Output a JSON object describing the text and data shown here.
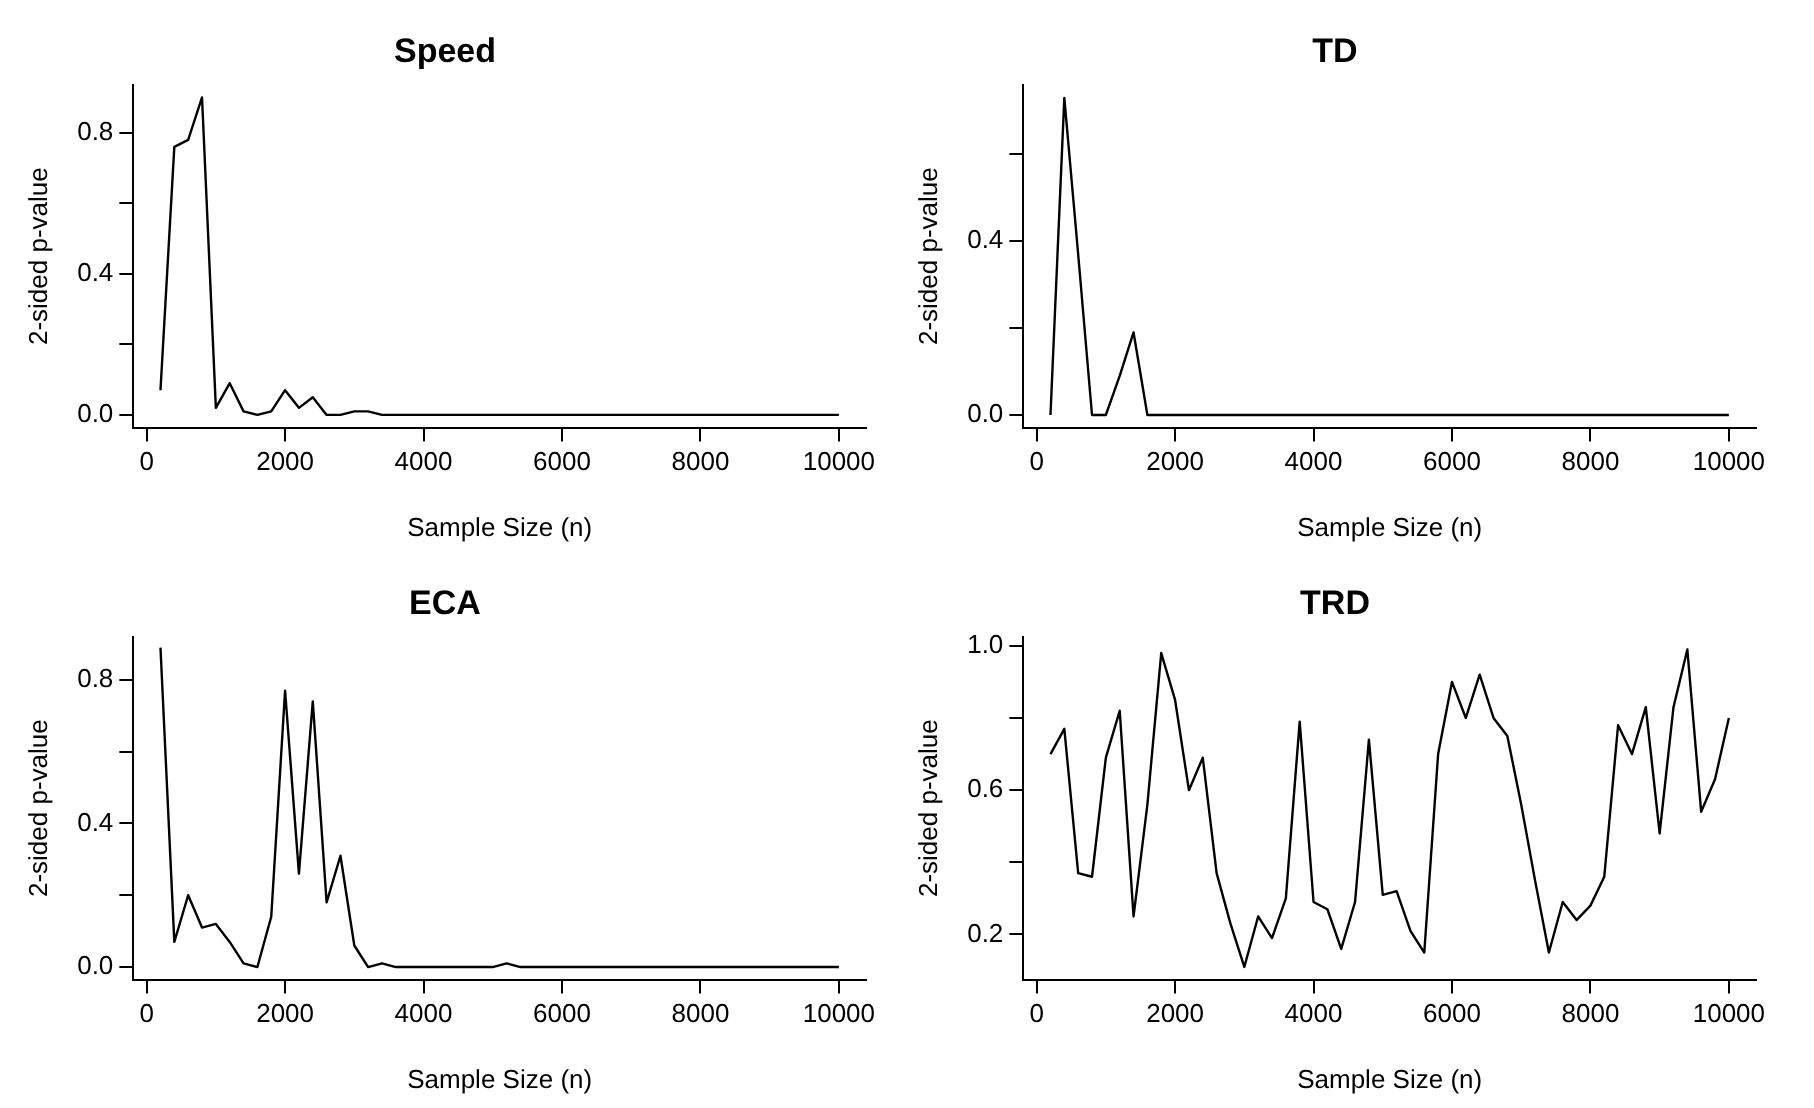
{
  "chart_data": [
    {
      "type": "line",
      "title": "Speed",
      "xlabel": "Sample Size (n)",
      "ylabel": "2-sided p-value",
      "color": "#000000",
      "grid": false,
      "marker": "none",
      "line_style": "solid",
      "x": [
        200,
        400,
        600,
        800,
        1000,
        1200,
        1400,
        1600,
        1800,
        2000,
        2200,
        2400,
        2600,
        2800,
        3000,
        3200,
        3400,
        3600,
        3800,
        4000,
        4200,
        4400,
        4600,
        4800,
        5000,
        5200,
        5400,
        5600,
        5800,
        6000,
        6200,
        6400,
        6600,
        6800,
        7000,
        7200,
        7400,
        7600,
        7800,
        8000,
        8200,
        8400,
        8600,
        8800,
        9000,
        9200,
        9400,
        9600,
        9800,
        10000
      ],
      "values": [
        0.07,
        0.76,
        0.78,
        0.9,
        0.02,
        0.09,
        0.01,
        0,
        0.01,
        0.07,
        0.02,
        0.05,
        0,
        0,
        0.01,
        0.01,
        0,
        0,
        0,
        0,
        0,
        0,
        0,
        0,
        0,
        0,
        0,
        0,
        0,
        0,
        0,
        0,
        0,
        0,
        0,
        0,
        0,
        0,
        0,
        0,
        0,
        0,
        0,
        0,
        0,
        0,
        0,
        0,
        0,
        0
      ],
      "xlim": [
        -192,
        10392
      ],
      "ylim": [
        -0.036,
        0.936
      ],
      "xticks": [
        0,
        2000,
        4000,
        6000,
        8000,
        10000
      ],
      "yticks": [
        {
          "value": 0,
          "label": "0.0"
        },
        {
          "value": 0.2,
          "label": null
        },
        {
          "value": 0.4,
          "label": "0.4"
        },
        {
          "value": 0.6,
          "label": null
        },
        {
          "value": 0.8,
          "label": "0.8"
        }
      ]
    },
    {
      "type": "line",
      "title": "TD",
      "xlabel": "Sample Size (n)",
      "ylabel": "2-sided p-value",
      "color": "#000000",
      "grid": false,
      "marker": "none",
      "line_style": "solid",
      "x": [
        200,
        400,
        600,
        800,
        1000,
        1200,
        1400,
        1600,
        1800,
        2000,
        2200,
        2400,
        2600,
        2800,
        3000,
        3200,
        3400,
        3600,
        3800,
        4000,
        4200,
        4400,
        4600,
        4800,
        5000,
        5200,
        5400,
        5600,
        5800,
        6000,
        6200,
        6400,
        6600,
        6800,
        7000,
        7200,
        7400,
        7600,
        7800,
        8000,
        8200,
        8400,
        8600,
        8800,
        9000,
        9200,
        9400,
        9600,
        9800,
        10000
      ],
      "values": [
        0,
        0.73,
        0.37,
        0,
        0,
        0.09,
        0.19,
        0,
        0,
        0,
        0,
        0,
        0,
        0,
        0,
        0,
        0,
        0,
        0,
        0,
        0,
        0,
        0,
        0,
        0,
        0,
        0,
        0,
        0,
        0,
        0,
        0,
        0,
        0,
        0,
        0,
        0,
        0,
        0,
        0,
        0,
        0,
        0,
        0,
        0,
        0,
        0,
        0,
        0,
        0
      ],
      "xlim": [
        -192,
        10392
      ],
      "ylim": [
        -0.029,
        0.76
      ],
      "xticks": [
        0,
        2000,
        4000,
        6000,
        8000,
        10000
      ],
      "yticks": [
        {
          "value": 0,
          "label": "0.0"
        },
        {
          "value": 0.2,
          "label": null
        },
        {
          "value": 0.4,
          "label": "0.4"
        },
        {
          "value": 0.6,
          "label": null
        }
      ]
    },
    {
      "type": "line",
      "title": "ECA",
      "xlabel": "Sample Size (n)",
      "ylabel": "2-sided p-value",
      "color": "#000000",
      "grid": false,
      "marker": "none",
      "line_style": "solid",
      "x": [
        200,
        400,
        600,
        800,
        1000,
        1200,
        1400,
        1600,
        1800,
        2000,
        2200,
        2400,
        2600,
        2800,
        3000,
        3200,
        3400,
        3600,
        3800,
        4000,
        4200,
        4400,
        4600,
        4800,
        5000,
        5200,
        5400,
        5600,
        5800,
        6000,
        6200,
        6400,
        6600,
        6800,
        7000,
        7200,
        7400,
        7600,
        7800,
        8000,
        8200,
        8400,
        8600,
        8800,
        9000,
        9200,
        9400,
        9600,
        9800,
        10000
      ],
      "values": [
        0.89,
        0.07,
        0.2,
        0.11,
        0.12,
        0.07,
        0.01,
        0,
        0.14,
        0.77,
        0.26,
        0.74,
        0.18,
        0.31,
        0.06,
        0,
        0.01,
        0,
        0,
        0,
        0,
        0,
        0,
        0,
        0,
        0.01,
        0,
        0,
        0,
        0,
        0,
        0,
        0,
        0,
        0,
        0,
        0,
        0,
        0,
        0,
        0,
        0,
        0,
        0,
        0,
        0,
        0,
        0,
        0,
        0
      ],
      "xlim": [
        -192,
        10392
      ],
      "ylim": [
        -0.035,
        0.92
      ],
      "xticks": [
        0,
        2000,
        4000,
        6000,
        8000,
        10000
      ],
      "yticks": [
        {
          "value": 0,
          "label": "0.0"
        },
        {
          "value": 0.2,
          "label": null
        },
        {
          "value": 0.4,
          "label": "0.4"
        },
        {
          "value": 0.6,
          "label": null
        },
        {
          "value": 0.8,
          "label": "0.8"
        }
      ]
    },
    {
      "type": "line",
      "title": "TRD",
      "xlabel": "Sample Size (n)",
      "ylabel": "2-sided p-value",
      "color": "#000000",
      "grid": false,
      "marker": "none",
      "line_style": "solid",
      "x": [
        200,
        400,
        600,
        800,
        1000,
        1200,
        1400,
        1600,
        1800,
        2000,
        2200,
        2400,
        2600,
        2800,
        3000,
        3200,
        3400,
        3600,
        3800,
        4000,
        4200,
        4400,
        4600,
        4800,
        5000,
        5200,
        5400,
        5600,
        5800,
        6000,
        6200,
        6400,
        6600,
        6800,
        7000,
        7200,
        7400,
        7600,
        7800,
        8000,
        8200,
        8400,
        8600,
        8800,
        9000,
        9200,
        9400,
        9600,
        9800,
        10000
      ],
      "values": [
        0.7,
        0.77,
        0.37,
        0.36,
        0.69,
        0.82,
        0.25,
        0.56,
        0.98,
        0.85,
        0.6,
        0.69,
        0.37,
        0.23,
        0.11,
        0.25,
        0.19,
        0.3,
        0.79,
        0.29,
        0.27,
        0.16,
        0.29,
        0.74,
        0.31,
        0.32,
        0.21,
        0.15,
        0.7,
        0.9,
        0.8,
        0.92,
        0.8,
        0.75,
        0.56,
        0.35,
        0.15,
        0.29,
        0.24,
        0.28,
        0.36,
        0.78,
        0.7,
        0.83,
        0.48,
        0.83,
        0.99,
        0.54,
        0.63,
        0.8
      ],
      "xlim": [
        -192,
        10392
      ],
      "ylim": [
        0.075,
        1.025
      ],
      "xticks": [
        0,
        2000,
        4000,
        6000,
        8000,
        10000
      ],
      "yticks": [
        {
          "value": 0.2,
          "label": "0.2"
        },
        {
          "value": 0.4,
          "label": null
        },
        {
          "value": 0.6,
          "label": "0.6"
        },
        {
          "value": 0.8,
          "label": null
        },
        {
          "value": 1,
          "label": "1.0"
        }
      ]
    }
  ]
}
